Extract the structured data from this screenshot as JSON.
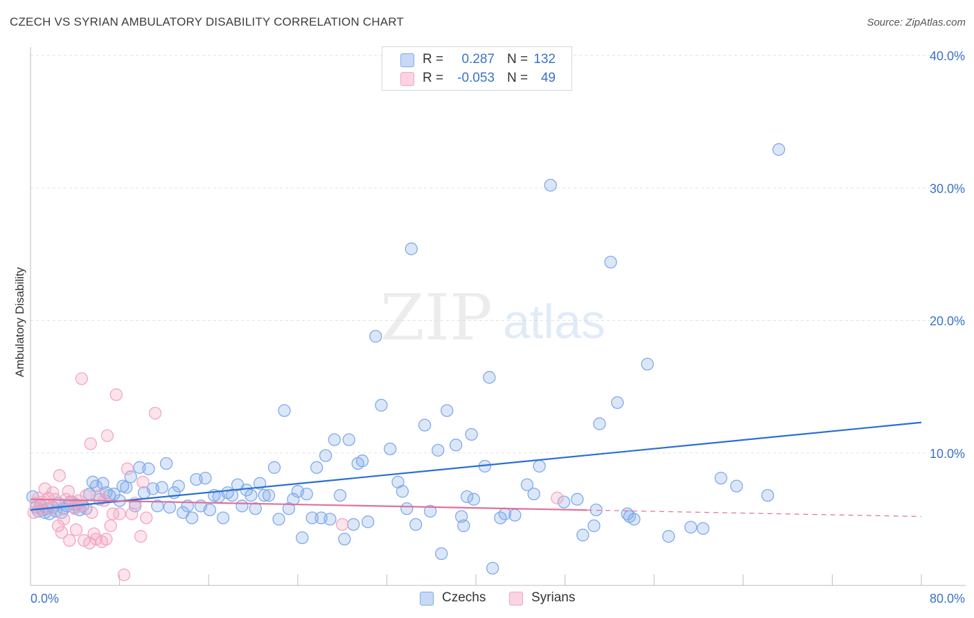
{
  "header": {
    "title": "CZECH VS SYRIAN AMBULATORY DISABILITY CORRELATION CHART",
    "source": "Source: ZipAtlas.com"
  },
  "watermark": {
    "part1": "ZIP",
    "part2": "atlas"
  },
  "stats": {
    "rows": [
      {
        "r_label": "R =",
        "r_value": "0.287",
        "n_label": "N =",
        "n_value": "132",
        "color": "#7eaaea"
      },
      {
        "r_label": "R =",
        "r_value": "-0.053",
        "n_label": "N =",
        "n_value": "49",
        "color": "#f2a6bf"
      }
    ]
  },
  "legend": {
    "items": [
      {
        "label": "Czechs",
        "color": "#7eaaea"
      },
      {
        "label": "Syrians",
        "color": "#f2a6bf"
      }
    ]
  },
  "chart_data": {
    "type": "scatter",
    "title": "CZECH VS SYRIAN AMBULATORY DISABILITY CORRELATION CHART",
    "xlabel": "",
    "ylabel": "Ambulatory Disability",
    "xlim": [
      0,
      80
    ],
    "ylim": [
      0,
      40
    ],
    "x_tick_labels": [
      "0.0%",
      "80.0%"
    ],
    "y_tick_labels": [
      "10.0%",
      "20.0%",
      "30.0%",
      "40.0%"
    ],
    "y_ticks": [
      10,
      20,
      30,
      40
    ],
    "grid": true,
    "series": [
      {
        "name": "Czechs",
        "color": "#7eaaea",
        "line_color": "#2a6fd0",
        "trend": {
          "x": [
            0,
            80
          ],
          "y": [
            5.7,
            12.3
          ],
          "dashed_from": null
        },
        "points": [
          [
            0.2,
            6.7
          ],
          [
            0.5,
            5.9
          ],
          [
            0.7,
            5.6
          ],
          [
            0.9,
            6.1
          ],
          [
            1.1,
            5.7
          ],
          [
            1.3,
            5.5
          ],
          [
            1.5,
            5.8
          ],
          [
            1.7,
            5.4
          ],
          [
            2.0,
            5.9
          ],
          [
            2.3,
            5.6
          ],
          [
            2.5,
            6.2
          ],
          [
            2.8,
            5.5
          ],
          [
            3.0,
            5.8
          ],
          [
            3.3,
            6.0
          ],
          [
            3.6,
            6.3
          ],
          [
            3.9,
            5.9
          ],
          [
            4.1,
            6.1
          ],
          [
            4.4,
            5.7
          ],
          [
            4.7,
            6.0
          ],
          [
            5.0,
            5.8
          ],
          [
            5.3,
            6.9
          ],
          [
            5.6,
            7.8
          ],
          [
            5.9,
            7.5
          ],
          [
            6.2,
            6.5
          ],
          [
            6.5,
            7.7
          ],
          [
            6.8,
            7.0
          ],
          [
            7.1,
            6.8
          ],
          [
            7.5,
            6.9
          ],
          [
            8.0,
            6.4
          ],
          [
            8.3,
            7.5
          ],
          [
            8.6,
            7.4
          ],
          [
            9.0,
            8.2
          ],
          [
            9.4,
            6.0
          ],
          [
            9.8,
            8.9
          ],
          [
            10.2,
            7.0
          ],
          [
            10.6,
            8.8
          ],
          [
            11.0,
            7.3
          ],
          [
            11.4,
            6.0
          ],
          [
            11.8,
            7.4
          ],
          [
            12.2,
            9.2
          ],
          [
            12.5,
            5.9
          ],
          [
            12.9,
            7.0
          ],
          [
            13.3,
            7.5
          ],
          [
            13.7,
            5.5
          ],
          [
            14.1,
            6.0
          ],
          [
            14.5,
            5.1
          ],
          [
            14.9,
            8.0
          ],
          [
            15.3,
            6.0
          ],
          [
            15.7,
            8.1
          ],
          [
            16.1,
            5.7
          ],
          [
            16.5,
            6.8
          ],
          [
            16.9,
            6.7
          ],
          [
            17.3,
            5.1
          ],
          [
            17.7,
            7.0
          ],
          [
            18.1,
            6.8
          ],
          [
            18.6,
            7.6
          ],
          [
            19.0,
            6.0
          ],
          [
            19.4,
            7.2
          ],
          [
            19.8,
            6.8
          ],
          [
            20.2,
            5.8
          ],
          [
            20.6,
            7.7
          ],
          [
            21.0,
            6.8
          ],
          [
            21.4,
            6.8
          ],
          [
            21.9,
            8.9
          ],
          [
            22.3,
            5.0
          ],
          [
            22.8,
            13.2
          ],
          [
            23.2,
            5.8
          ],
          [
            23.6,
            6.5
          ],
          [
            24.0,
            7.1
          ],
          [
            24.4,
            3.6
          ],
          [
            24.8,
            6.9
          ],
          [
            25.3,
            5.1
          ],
          [
            25.7,
            8.9
          ],
          [
            26.1,
            5.1
          ],
          [
            26.5,
            9.8
          ],
          [
            26.9,
            5.0
          ],
          [
            27.3,
            11.0
          ],
          [
            27.8,
            6.8
          ],
          [
            28.2,
            3.5
          ],
          [
            28.6,
            11.0
          ],
          [
            29.0,
            4.6
          ],
          [
            29.4,
            9.2
          ],
          [
            29.8,
            9.4
          ],
          [
            30.3,
            4.8
          ],
          [
            31.0,
            18.8
          ],
          [
            31.5,
            13.6
          ],
          [
            32.3,
            10.3
          ],
          [
            33.0,
            7.8
          ],
          [
            33.4,
            7.1
          ],
          [
            33.8,
            5.8
          ],
          [
            34.2,
            25.4
          ],
          [
            34.6,
            4.6
          ],
          [
            35.4,
            12.1
          ],
          [
            35.9,
            5.6
          ],
          [
            36.6,
            10.2
          ],
          [
            36.9,
            2.4
          ],
          [
            37.4,
            13.2
          ],
          [
            38.2,
            10.6
          ],
          [
            38.7,
            5.2
          ],
          [
            38.9,
            4.5
          ],
          [
            39.2,
            6.7
          ],
          [
            39.6,
            11.4
          ],
          [
            39.8,
            6.5
          ],
          [
            40.8,
            9.0
          ],
          [
            41.2,
            15.7
          ],
          [
            41.5,
            1.3
          ],
          [
            42.2,
            5.1
          ],
          [
            42.6,
            5.4
          ],
          [
            43.5,
            5.3
          ],
          [
            44.6,
            7.6
          ],
          [
            45.2,
            6.9
          ],
          [
            45.7,
            9.0
          ],
          [
            46.7,
            30.2
          ],
          [
            47.9,
            6.3
          ],
          [
            49.1,
            6.5
          ],
          [
            49.6,
            3.8
          ],
          [
            50.6,
            4.5
          ],
          [
            50.8,
            5.7
          ],
          [
            51.1,
            12.2
          ],
          [
            52.1,
            24.4
          ],
          [
            52.7,
            13.8
          ],
          [
            53.6,
            5.4
          ],
          [
            53.8,
            5.2
          ],
          [
            54.2,
            5.0
          ],
          [
            55.4,
            16.7
          ],
          [
            57.3,
            3.7
          ],
          [
            59.3,
            4.4
          ],
          [
            60.4,
            4.3
          ],
          [
            62.0,
            8.1
          ],
          [
            63.4,
            7.5
          ],
          [
            66.2,
            6.8
          ],
          [
            67.2,
            32.9
          ]
        ]
      },
      {
        "name": "Syrians",
        "color": "#f2a6bf",
        "line_color": "#e0709a",
        "trend": {
          "x": [
            0,
            80
          ],
          "y": [
            6.5,
            5.2
          ],
          "dashed_from": 50
        },
        "points": [
          [
            0.3,
            5.5
          ],
          [
            0.5,
            6.2
          ],
          [
            0.7,
            6.6
          ],
          [
            0.9,
            5.7
          ],
          [
            1.1,
            6.3
          ],
          [
            1.3,
            7.3
          ],
          [
            1.6,
            6.6
          ],
          [
            1.8,
            5.8
          ],
          [
            2.0,
            7.0
          ],
          [
            2.2,
            6.5
          ],
          [
            2.5,
            4.5
          ],
          [
            2.6,
            8.3
          ],
          [
            2.8,
            4.0
          ],
          [
            3.0,
            5.0
          ],
          [
            3.2,
            6.5
          ],
          [
            3.4,
            7.1
          ],
          [
            3.5,
            3.4
          ],
          [
            3.8,
            6.3
          ],
          [
            4.0,
            5.8
          ],
          [
            4.1,
            4.2
          ],
          [
            4.3,
            6.4
          ],
          [
            4.5,
            6.0
          ],
          [
            4.6,
            15.6
          ],
          [
            4.8,
            3.4
          ],
          [
            5.0,
            6.8
          ],
          [
            5.3,
            3.2
          ],
          [
            5.4,
            10.7
          ],
          [
            5.5,
            5.5
          ],
          [
            5.7,
            3.9
          ],
          [
            5.9,
            3.5
          ],
          [
            6.2,
            6.8
          ],
          [
            6.4,
            3.3
          ],
          [
            6.6,
            6.4
          ],
          [
            6.8,
            3.5
          ],
          [
            6.9,
            11.3
          ],
          [
            7.2,
            4.5
          ],
          [
            7.4,
            5.4
          ],
          [
            7.7,
            14.4
          ],
          [
            8.0,
            5.4
          ],
          [
            8.4,
            0.8
          ],
          [
            8.7,
            8.8
          ],
          [
            9.1,
            5.4
          ],
          [
            9.4,
            6.2
          ],
          [
            9.9,
            3.7
          ],
          [
            10.1,
            7.8
          ],
          [
            10.4,
            5.1
          ],
          [
            11.2,
            13.0
          ],
          [
            28.0,
            4.6
          ],
          [
            47.3,
            6.6
          ]
        ]
      }
    ]
  }
}
